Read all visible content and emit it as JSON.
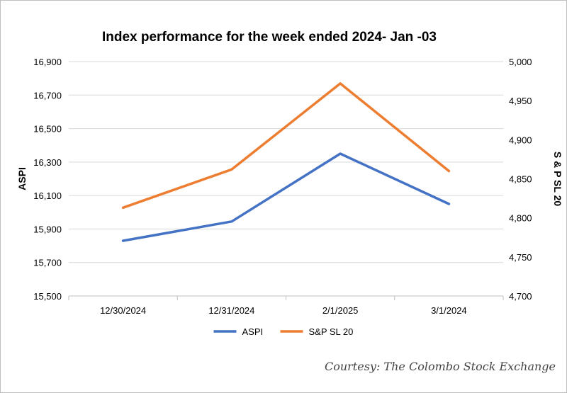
{
  "chart_data": {
    "type": "line",
    "title": "Index performance for the week ended 2024- Jan -03",
    "categories": [
      "12/30/2024",
      "12/31/2024",
      "2/1/2025",
      "3/1/2024"
    ],
    "ylabel": "ASPI",
    "y2label": "S & P SL 20",
    "ylim": [
      15500,
      16900
    ],
    "y_ticks": [
      "15,500",
      "15,700",
      "15,900",
      "16,100",
      "16,300",
      "16,500",
      "16,700",
      "16,900"
    ],
    "y2lim": [
      4700,
      5000
    ],
    "y2_ticks": [
      "4,700",
      "4,750",
      "4,800",
      "4,850",
      "4,900",
      "4,950",
      "5,000"
    ],
    "grid": true,
    "legend": "bottom",
    "series": [
      {
        "name": "ASPI",
        "axis": "left",
        "color": "#4472c4",
        "values": [
          15830,
          15945,
          16350,
          16050
        ]
      },
      {
        "name": "S&P SL 20",
        "axis": "right",
        "color": "#ed7d31",
        "values": [
          4813,
          4862,
          4972,
          4860
        ]
      }
    ]
  },
  "courtesy": "Courtesy: The Colombo Stock Exchange"
}
